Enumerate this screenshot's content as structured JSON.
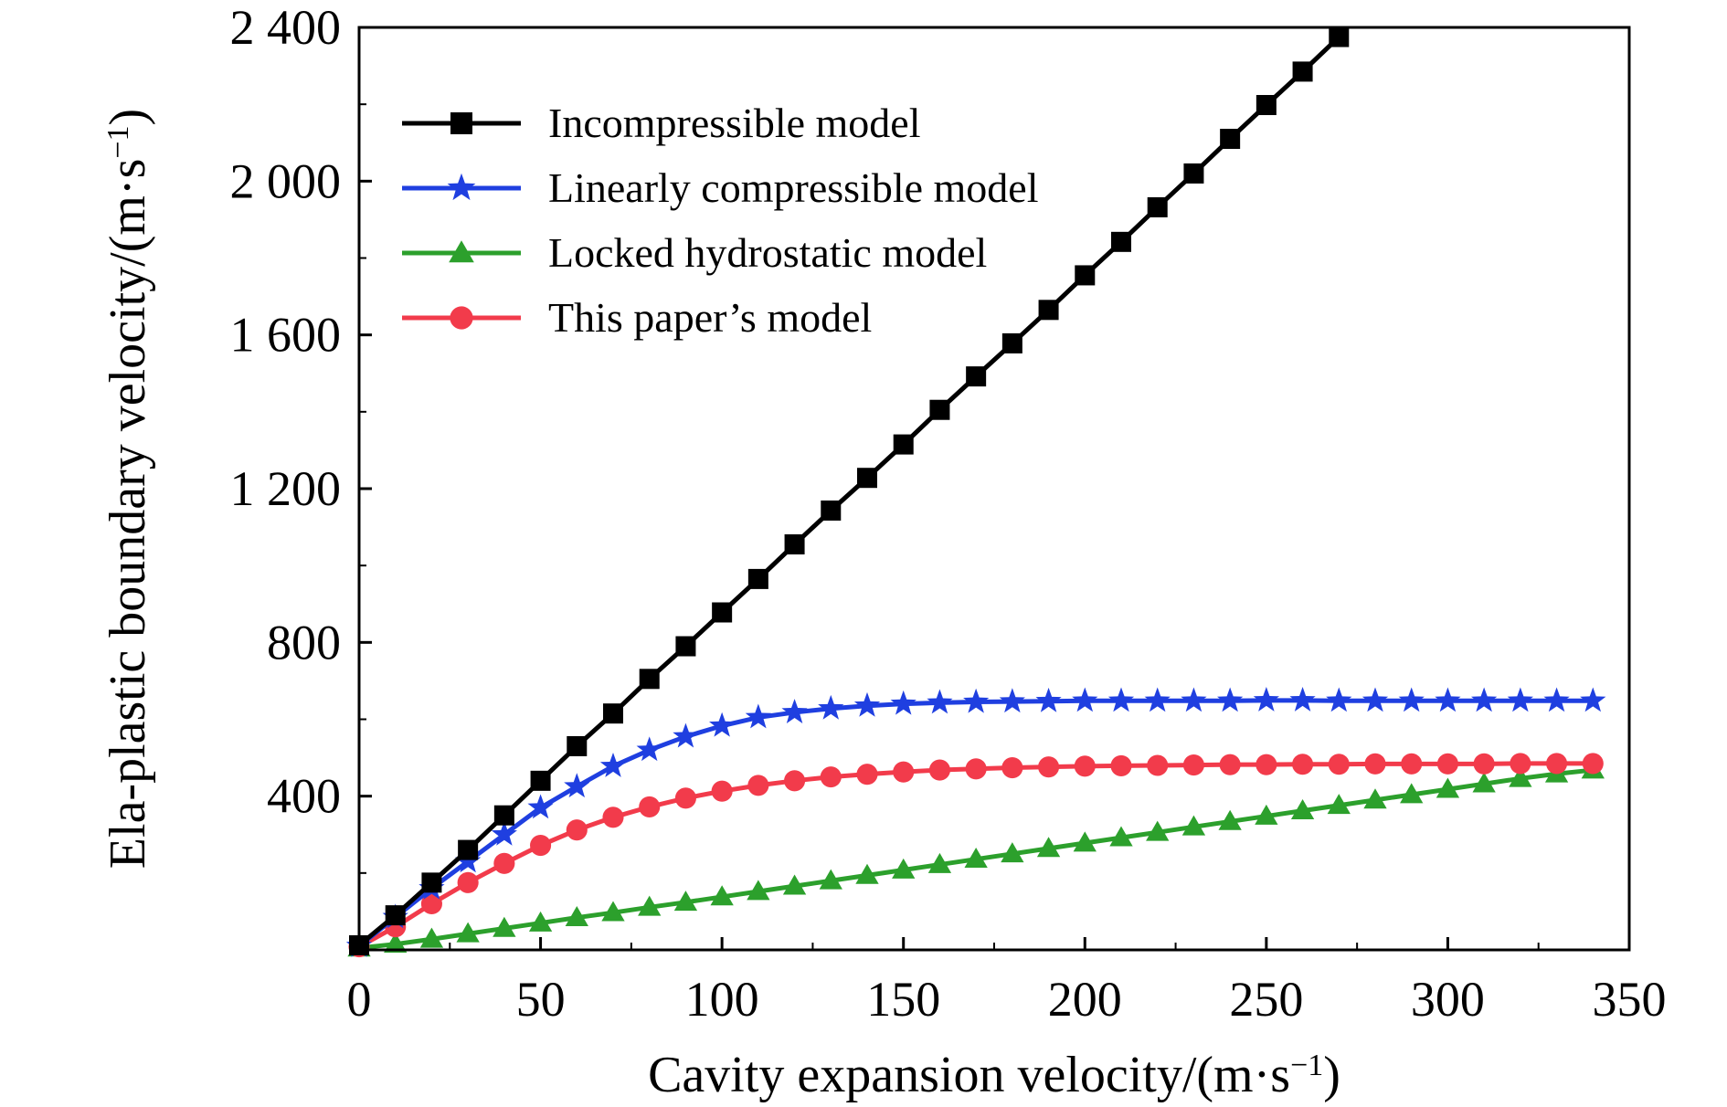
{
  "chart_data": {
    "type": "line",
    "title": "",
    "xlabel": "Cavity expansion velocity/(m·s",
    "xlabel_sup": "−1",
    "xlabel_end": ")",
    "ylabel": "Ela-plastic boundary velocity/(m·s",
    "ylabel_sup": "−1",
    "ylabel_end": ")",
    "xlim": [
      0,
      350
    ],
    "ylim": [
      0,
      2400
    ],
    "xticks": [
      0,
      50,
      100,
      150,
      200,
      250,
      300,
      350
    ],
    "xtick_labels": [
      "0",
      "50",
      "100",
      "150",
      "200",
      "250",
      "300",
      "350"
    ],
    "yticks": [
      400,
      800,
      1200,
      1600,
      2000,
      2400
    ],
    "ytick_labels": [
      "400",
      "800",
      "1 200",
      "1 600",
      "2 000",
      "2 400"
    ],
    "grid": false,
    "legend_position": "top-left",
    "series": [
      {
        "name": "Incompressible model",
        "color": "#000000",
        "marker": "square",
        "x": [
          0,
          10,
          20,
          30,
          40,
          50,
          60,
          70,
          80,
          90,
          100,
          110,
          120,
          130,
          140,
          150,
          160,
          170,
          180,
          190,
          200,
          210,
          220,
          230,
          240,
          250,
          260,
          270
        ],
        "y": [
          12,
          90,
          175,
          260,
          350,
          440,
          530,
          615,
          705,
          790,
          878,
          965,
          1055,
          1143,
          1228,
          1315,
          1405,
          1492,
          1578,
          1665,
          1755,
          1842,
          1932,
          2020,
          2110,
          2198,
          2285,
          2375
        ]
      },
      {
        "name": "Linearly compressible model",
        "color": "#1f3fe0",
        "marker": "star",
        "x": [
          0,
          10,
          20,
          30,
          40,
          50,
          60,
          70,
          80,
          90,
          100,
          110,
          120,
          130,
          140,
          150,
          160,
          170,
          180,
          190,
          200,
          210,
          220,
          230,
          240,
          250,
          260,
          270,
          280,
          290,
          300,
          310,
          320,
          330,
          340
        ],
        "y": [
          10,
          85,
          160,
          230,
          300,
          370,
          425,
          478,
          520,
          555,
          583,
          605,
          618,
          628,
          635,
          640,
          643,
          645,
          646,
          647,
          648,
          648,
          648,
          648,
          648,
          649,
          649,
          648,
          648,
          648,
          648,
          648,
          648,
          648,
          648
        ]
      },
      {
        "name": "Locked hydrostatic model",
        "color": "#2ca02c",
        "marker": "triangle",
        "x": [
          0,
          10,
          20,
          30,
          40,
          50,
          60,
          70,
          80,
          90,
          100,
          110,
          120,
          130,
          140,
          150,
          160,
          170,
          180,
          190,
          200,
          210,
          220,
          230,
          240,
          250,
          260,
          270,
          280,
          290,
          300,
          310,
          320,
          330,
          340
        ],
        "y": [
          5,
          15,
          28,
          42,
          56,
          70,
          84,
          97,
          111,
          124,
          138,
          152,
          166,
          180,
          194,
          208,
          222,
          236,
          250,
          264,
          278,
          292,
          306,
          320,
          334,
          348,
          362,
          376,
          390,
          404,
          418,
          432,
          446,
          458,
          468
        ]
      },
      {
        "name": "This paper’s model",
        "color": "#f23b4b",
        "marker": "circle",
        "x": [
          0,
          10,
          20,
          30,
          40,
          50,
          60,
          70,
          80,
          90,
          100,
          110,
          120,
          130,
          140,
          150,
          160,
          170,
          180,
          190,
          200,
          210,
          220,
          230,
          240,
          250,
          260,
          270,
          280,
          290,
          300,
          310,
          320,
          330,
          340
        ],
        "y": [
          8,
          60,
          120,
          175,
          225,
          272,
          312,
          345,
          372,
          395,
          413,
          428,
          440,
          450,
          457,
          463,
          468,
          471,
          474,
          476,
          478,
          479,
          480,
          481,
          482,
          482,
          483,
          483,
          484,
          484,
          484,
          484,
          485,
          485,
          485
        ]
      }
    ]
  }
}
